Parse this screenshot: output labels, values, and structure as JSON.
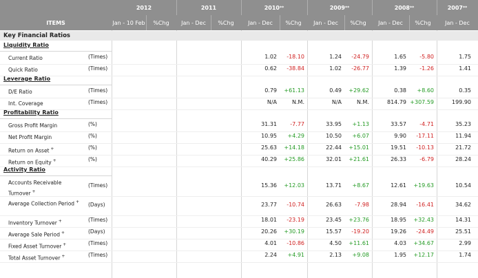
{
  "header": {
    "items_label": "ITEMS",
    "years": [
      {
        "label": "2012",
        "sup": ""
      },
      {
        "label": "2011",
        "sup": ""
      },
      {
        "label": "2010",
        "sup": "**"
      },
      {
        "label": "2009",
        "sup": "**"
      },
      {
        "label": "2008",
        "sup": "**"
      },
      {
        "label": "2007",
        "sup": "**"
      }
    ],
    "subheaders": [
      "Jan - 10 Feb",
      "%Chg",
      "Jan - Dec",
      "%Chg",
      "Jan - Dec",
      "%Chg",
      "Jan - Dec",
      "%Chg",
      "Jan - Dec",
      "%Chg",
      "Jan - Dec"
    ]
  },
  "section_title": "Key Financial Ratios",
  "groups": [
    {
      "title": "Liquidity Ratio",
      "rows": [
        {
          "label": "Current Ratio",
          "sup": "",
          "unit": "(Times)",
          "v2010": "1.02",
          "c2010": "-18.10",
          "v2009": "1.24",
          "c2009": "-24.79",
          "v2008": "1.65",
          "c2008": "-5.80",
          "v2007": "1.75"
        },
        {
          "label": "Quick Ratio",
          "sup": "",
          "unit": "(Times)",
          "v2010": "0.62",
          "c2010": "-38.84",
          "v2009": "1.02",
          "c2009": "-26.77",
          "v2008": "1.39",
          "c2008": "-1.26",
          "v2007": "1.41"
        }
      ]
    },
    {
      "title": "Leverage Ratio",
      "rows": [
        {
          "label": "D/E Ratio",
          "sup": "",
          "unit": "(Times)",
          "v2010": "0.79",
          "c2010": "+61.13",
          "v2009": "0.49",
          "c2009": "+29.62",
          "v2008": "0.38",
          "c2008": "+8.60",
          "v2007": "0.35"
        },
        {
          "label": "Int. Coverage",
          "sup": "",
          "unit": "(Times)",
          "v2010": "N/A",
          "c2010": "N.M.",
          "v2009": "N/A",
          "c2009": "N.M.",
          "v2008": "814.79",
          "c2008": "+307.59",
          "v2007": "199.90"
        }
      ]
    },
    {
      "title": "Profitability Ratio",
      "rows": [
        {
          "label": "Gross Profit Margin",
          "sup": "",
          "unit": "(%)",
          "v2010": "31.31",
          "c2010": "-7.77",
          "v2009": "33.95",
          "c2009": "+1.13",
          "v2008": "33.57",
          "c2008": "-4.71",
          "v2007": "35.23"
        },
        {
          "label": "Net Profit Margin",
          "sup": "",
          "unit": "(%)",
          "v2010": "10.95",
          "c2010": "+4.29",
          "v2009": "10.50",
          "c2009": "+6.07",
          "v2008": "9.90",
          "c2008": "-17.11",
          "v2007": "11.94"
        },
        {
          "label": "Return on Asset",
          "sup": "+",
          "unit": "(%)",
          "v2010": "25.63",
          "c2010": "+14.18",
          "v2009": "22.44",
          "c2009": "+15.01",
          "v2008": "19.51",
          "c2008": "-10.13",
          "v2007": "21.72"
        },
        {
          "label": "Return on Equity",
          "sup": "+",
          "unit": "(%)",
          "v2010": "40.29",
          "c2010": "+25.86",
          "v2009": "32.01",
          "c2009": "+21.61",
          "v2008": "26.33",
          "c2008": "-6.79",
          "v2007": "28.24"
        }
      ]
    },
    {
      "title": "Activity Ratio",
      "rows": [
        {
          "label": "Accounts Receivable Turnover",
          "sup": "+",
          "unit": "(Times)",
          "v2010": "15.36",
          "c2010": "+12.03",
          "v2009": "13.71",
          "c2009": "+8.67",
          "v2008": "12.61",
          "c2008": "+19.63",
          "v2007": "10.54"
        },
        {
          "label": "Average Collection Period",
          "sup": "+",
          "unit": "(Days)",
          "v2010": "23.77",
          "c2010": "-10.74",
          "v2009": "26.63",
          "c2009": "-7.98",
          "v2008": "28.94",
          "c2008": "-16.41",
          "v2007": "34.62"
        },
        {
          "label": "Inventory Turnover",
          "sup": "+",
          "unit": "(Times)",
          "v2010": "18.01",
          "c2010": "-23.19",
          "v2009": "23.45",
          "c2009": "+23.76",
          "v2008": "18.95",
          "c2008": "+32.43",
          "v2007": "14.31"
        },
        {
          "label": "Average Sale Period",
          "sup": "+",
          "unit": "(Days)",
          "v2010": "20.26",
          "c2010": "+30.19",
          "v2009": "15.57",
          "c2009": "-19.20",
          "v2008": "19.26",
          "c2008": "-24.49",
          "v2007": "25.51"
        },
        {
          "label": "Fixed Asset Turnover",
          "sup": "+",
          "unit": "(Times)",
          "v2010": "4.01",
          "c2010": "-10.86",
          "v2009": "4.50",
          "c2009": "+11.61",
          "v2008": "4.03",
          "c2008": "+34.67",
          "v2007": "2.99"
        },
        {
          "label": "Total Asset Turnover",
          "sup": "+",
          "unit": "(Times)",
          "v2010": "2.24",
          "c2010": "+4.91",
          "v2009": "2.13",
          "c2009": "+9.08",
          "v2008": "1.95",
          "c2008": "+12.17",
          "v2007": "1.74"
        }
      ]
    }
  ],
  "colors": {
    "header_bg": "#8f8f8f",
    "negative": "#d02020",
    "positive": "#239a23"
  }
}
